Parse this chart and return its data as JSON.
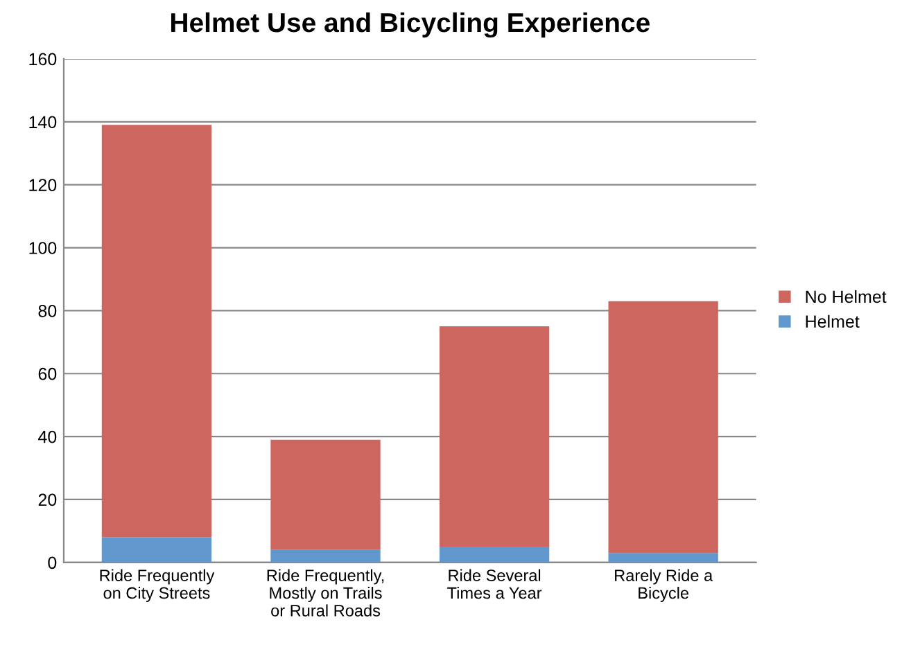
{
  "chart_data": {
    "type": "bar",
    "title": "Helmet Use and Bicycling Experience",
    "stacked": true,
    "categories": [
      "Ride Frequently on City Streets",
      "Ride Frequently, Mostly on Trails or Rural Roads",
      "Ride Several Times a Year",
      "Rarely Ride a Bicycle"
    ],
    "series": [
      {
        "name": "Helmet",
        "color": "#6097cd",
        "values": [
          8,
          4,
          5,
          3
        ]
      },
      {
        "name": "No Helmet",
        "color": "#cc665f",
        "values": [
          131,
          35,
          70,
          80
        ]
      }
    ],
    "ylim": [
      0,
      160
    ],
    "yticks": [
      0,
      20,
      40,
      60,
      80,
      100,
      120,
      140,
      160
    ],
    "grid": "y",
    "legend": "right"
  }
}
